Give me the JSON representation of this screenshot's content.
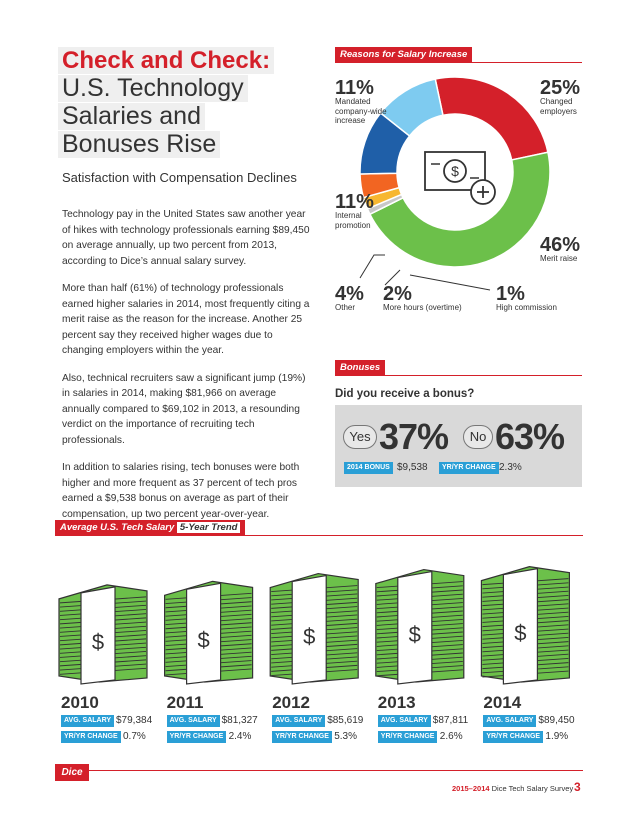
{
  "title": {
    "line1": "Check and Check:",
    "line2": "U.S. Technology",
    "line3": "Salaries and",
    "line4": "Bonuses Rise"
  },
  "subtitle": "Satisfaction with Compensation Declines",
  "paragraphs": [
    "Technology pay in the United States saw another year of hikes with technology professionals earning $89,450 on average annually, up two percent from 2013, according to Dice’s annual salary survey.",
    "More than half (61%) of technology professionals earned higher salaries in 2014, most frequently citing a merit raise as the reason for the increase. Another 25 percent say they received higher wages due to changing employers within the year.",
    "Also, technical recruiters saw a significant jump (19%) in salaries in 2014, making $81,966 on average annually compared to $69,102 in 2013, a resounding verdict on the importance of recruiting tech professionals.",
    "In addition to salaries rising, tech bonuses were both higher and more frequent as 37 percent of tech pros earned a $9,538 bonus on average as part of their compensation, up two percent year-over-year."
  ],
  "reasons": {
    "tag": "Reasons for Salary Increase",
    "chart_data": {
      "type": "pie",
      "slices": [
        {
          "label": "Changed employers",
          "pct": "25%",
          "value": 25,
          "color": "#d4202a"
        },
        {
          "label": "Merit raise",
          "pct": "46%",
          "value": 46,
          "color": "#6cc04a"
        },
        {
          "label": "High commission",
          "pct": "1%",
          "value": 1,
          "color": "#c8c8c8"
        },
        {
          "label": "More hours (overtime)",
          "pct": "2%",
          "value": 2,
          "color": "#f7b731"
        },
        {
          "label": "Other",
          "pct": "4%",
          "value": 4,
          "color": "#f26522"
        },
        {
          "label": "Internal promotion",
          "pct": "11%",
          "value": 11,
          "color": "#1f5fa8"
        },
        {
          "label": "Mandated company-wide increase",
          "pct": "11%",
          "value": 11,
          "color": "#7ecbf0"
        }
      ]
    },
    "labels": {
      "mandated_pct": "11%",
      "mandated_l1": "Mandated",
      "mandated_l2": "company-wide",
      "mandated_l3": "increase",
      "changed_pct": "25%",
      "changed_l1": "Changed",
      "changed_l2": "employers",
      "internal_pct": "11%",
      "internal_l1": "Internal",
      "internal_l2": "promotion",
      "merit_pct": "46%",
      "merit_l1": "Merit raise",
      "other_pct": "4%",
      "other_l1": "Other",
      "hours_pct": "2%",
      "hours_l1": "More hours (overtime)",
      "commission_pct": "1%",
      "commission_l1": "High commission"
    },
    "center_symbol": "$"
  },
  "bonuses": {
    "tag": "Bonuses",
    "question": "Did you receive a bonus?",
    "yes_label": "Yes",
    "yes_pct": "37%",
    "no_label": "No",
    "no_pct": "63%",
    "bonus_tag": "2014 BONUS",
    "bonus_value": "$9,538",
    "change_tag": "YR/YR CHANGE",
    "change_value": "2.3%"
  },
  "trend": {
    "tag_part1": "Average U.S. Tech Salary",
    "tag_part2": "5-Year Trend",
    "salary_tag": "AVG. SALARY",
    "change_tag": "YR/YR CHANGE",
    "symbol": "$",
    "chart_data": {
      "type": "bar",
      "categories": [
        "2010",
        "2011",
        "2012",
        "2013",
        "2014"
      ],
      "values": [
        79384,
        81327,
        85619,
        87811,
        89450
      ]
    },
    "years": [
      {
        "year": "2010",
        "salary": "$79,384",
        "change": "0.7%"
      },
      {
        "year": "2011",
        "salary": "$81,327",
        "change": "2.4%"
      },
      {
        "year": "2012",
        "salary": "$85,619",
        "change": "5.3%"
      },
      {
        "year": "2013",
        "salary": "$87,811",
        "change": "2.6%"
      },
      {
        "year": "2014",
        "salary": "$89,450",
        "change": "1.9%"
      }
    ]
  },
  "footer": {
    "logo": "Dice",
    "years": "2015–2014",
    "text": "Dice Tech Salary Survey",
    "page": "3"
  }
}
